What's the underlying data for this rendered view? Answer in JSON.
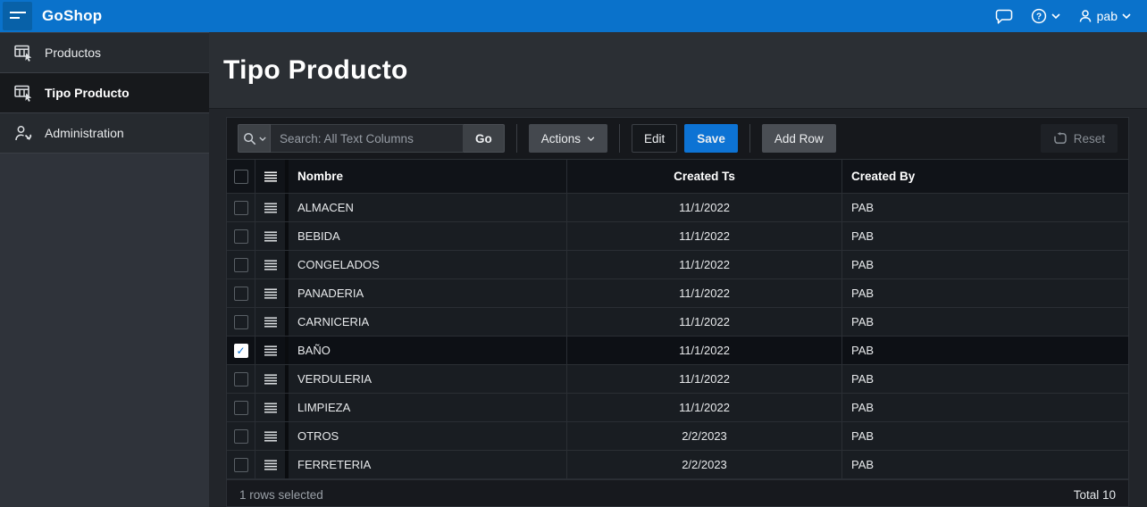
{
  "header": {
    "app_title": "GoShop",
    "user_label": "pab"
  },
  "sidebar": {
    "items": [
      {
        "label": "Productos",
        "icon": "grid",
        "active": false
      },
      {
        "label": "Tipo Producto",
        "icon": "grid",
        "active": true
      },
      {
        "label": "Administration",
        "icon": "admin",
        "active": false
      }
    ]
  },
  "page": {
    "title": "Tipo Producto"
  },
  "toolbar": {
    "search_placeholder": "Search: All Text Columns",
    "go": "Go",
    "actions": "Actions",
    "edit": "Edit",
    "save": "Save",
    "add_row": "Add Row",
    "reset": "Reset"
  },
  "grid": {
    "columns": [
      "Nombre",
      "Created Ts",
      "Created By"
    ],
    "rows": [
      {
        "nombre": "ALMACEN",
        "created_ts": "11/1/2022",
        "created_by": "PAB",
        "selected": false
      },
      {
        "nombre": "BEBIDA",
        "created_ts": "11/1/2022",
        "created_by": "PAB",
        "selected": false
      },
      {
        "nombre": "CONGELADOS",
        "created_ts": "11/1/2022",
        "created_by": "PAB",
        "selected": false
      },
      {
        "nombre": "PANADERIA",
        "created_ts": "11/1/2022",
        "created_by": "PAB",
        "selected": false
      },
      {
        "nombre": "CARNICERIA",
        "created_ts": "11/1/2022",
        "created_by": "PAB",
        "selected": false
      },
      {
        "nombre": "BAÑO",
        "created_ts": "11/1/2022",
        "created_by": "PAB",
        "selected": true
      },
      {
        "nombre": "VERDULERIA",
        "created_ts": "11/1/2022",
        "created_by": "PAB",
        "selected": false
      },
      {
        "nombre": "LIMPIEZA",
        "created_ts": "11/1/2022",
        "created_by": "PAB",
        "selected": false
      },
      {
        "nombre": "OTROS",
        "created_ts": "2/2/2023",
        "created_by": "PAB",
        "selected": false
      },
      {
        "nombre": "FERRETERIA",
        "created_ts": "2/2/2023",
        "created_by": "PAB",
        "selected": false
      }
    ],
    "footer": {
      "selected_text": "1 rows selected",
      "total_text": "Total 10"
    }
  },
  "colors": {
    "header_blue": "#0a72cb",
    "accent_blue": "#0d73d4"
  }
}
